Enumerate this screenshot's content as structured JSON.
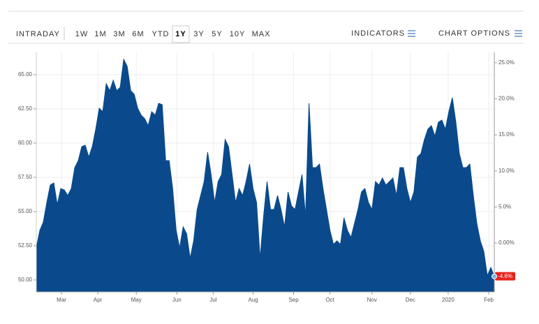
{
  "toolbar": {
    "intraday": "INTRADAY",
    "ranges": [
      "1W",
      "1M",
      "3M",
      "6M",
      "YTD",
      "1Y",
      "3Y",
      "5Y",
      "10Y",
      "MAX"
    ],
    "active_range": 5,
    "indicators": "INDICATORS",
    "chart_options": "CHART OPTIONS"
  },
  "chart_data": {
    "type": "area",
    "color": "#0a4a8c",
    "grid": true,
    "x": [
      0,
      1,
      2,
      3,
      4,
      5,
      6,
      7,
      8,
      9,
      10,
      11,
      12,
      13,
      14,
      15,
      16,
      17,
      18,
      19,
      20,
      21,
      22,
      23,
      24,
      25,
      26,
      27,
      28,
      29,
      30,
      31,
      32,
      33,
      34,
      35,
      36,
      37,
      38,
      39,
      40,
      41,
      42,
      43,
      44,
      45,
      46,
      47,
      48,
      49,
      50,
      51,
      52,
      53,
      54,
      55,
      56,
      57,
      58,
      59,
      60,
      61,
      62,
      63,
      64,
      65,
      66,
      67,
      68,
      69,
      70,
      71,
      72,
      73,
      74,
      75,
      76,
      77,
      78,
      79,
      80,
      81,
      82,
      83,
      84,
      85,
      86,
      87,
      88,
      89,
      90,
      91,
      92,
      93,
      94,
      95,
      96,
      97,
      98,
      99,
      100,
      101,
      102,
      103,
      104,
      105,
      106,
      107,
      108,
      109,
      110,
      111,
      112,
      113,
      114,
      115,
      116,
      117,
      118,
      119,
      120,
      121,
      122,
      123,
      124,
      125,
      126,
      127,
      128,
      129,
      130,
      131
    ],
    "values": [
      52.35,
      53.62,
      54.23,
      55.66,
      56.94,
      57.09,
      55.51,
      56.68,
      56.58,
      56.17,
      56.68,
      58.21,
      58.72,
      59.74,
      59.85,
      58.98,
      59.74,
      61.02,
      62.55,
      62.3,
      64.34,
      63.83,
      64.59,
      63.83,
      64.08,
      66.12,
      65.61,
      63.83,
      63.57,
      62.55,
      62.04,
      61.79,
      61.28,
      62.3,
      62.04,
      62.91,
      62.81,
      58.72,
      58.72,
      56.68,
      53.62,
      52.35,
      53.88,
      53.37,
      51.58,
      52.86,
      55.15,
      56.17,
      57.19,
      59.34,
      57.7,
      55.66,
      57.19,
      57.7,
      60.26,
      59.74,
      57.7,
      55.66,
      56.68,
      56.17,
      57.19,
      58.47,
      56.68,
      55.66,
      51.58,
      54.64,
      57.19,
      55.15,
      55.15,
      56.17,
      55.15,
      53.88,
      56.43,
      55.41,
      55.15,
      56.43,
      57.7,
      54.64,
      62.91,
      58.21,
      58.21,
      58.47,
      56.68,
      55.15,
      53.62,
      52.6,
      52.86,
      52.6,
      54.54,
      53.62,
      53.11,
      54.13,
      55.15,
      56.43,
      56.68,
      55.66,
      55.15,
      57.19,
      56.94,
      57.45,
      56.94,
      57.19,
      57.45,
      56.17,
      58.21,
      58.21,
      56.68,
      55.66,
      56.43,
      58.98,
      59.23,
      60.26,
      61.02,
      61.28,
      60.51,
      61.53,
      61.68,
      61.02,
      62.3,
      63.32,
      61.53,
      59.23,
      58.21,
      58.21,
      58.47,
      56.17,
      54.13,
      52.86,
      52.09,
      50.31,
      50.92,
      50.26
    ],
    "xlim": [
      0,
      131
    ],
    "xticks": [
      {
        "value": 7.2,
        "label": "Mar"
      },
      {
        "value": 17.6,
        "label": "Apr"
      },
      {
        "value": 28.6,
        "label": "May"
      },
      {
        "value": 40.2,
        "label": "Jun"
      },
      {
        "value": 50.6,
        "label": "Jul"
      },
      {
        "value": 62,
        "label": "Aug"
      },
      {
        "value": 73.6,
        "label": "Sep"
      },
      {
        "value": 84,
        "label": "Oct"
      },
      {
        "value": 96,
        "label": "Nov"
      },
      {
        "value": 107,
        "label": "Dec"
      },
      {
        "value": 117.8,
        "label": "2020"
      },
      {
        "value": 129.4,
        "label": "Feb"
      }
    ],
    "ylim": [
      49.13,
      66.63
    ],
    "yticks": [
      {
        "value": 50,
        "label": "50.00"
      },
      {
        "value": 52.5,
        "label": "52.50"
      },
      {
        "value": 55,
        "label": "55.00"
      },
      {
        "value": 57.5,
        "label": "57.50"
      },
      {
        "value": 60,
        "label": "60.00"
      },
      {
        "value": 62.5,
        "label": "62.50"
      },
      {
        "value": 65,
        "label": "65.00"
      }
    ],
    "y2lim": [
      -6.77,
      26.43
    ],
    "y2ticks": [
      {
        "value": 0,
        "label": "0.00%"
      },
      {
        "value": 5,
        "label": "5.0%"
      },
      {
        "value": 10,
        "label": "10.0%"
      },
      {
        "value": 15,
        "label": "15.0%"
      },
      {
        "value": 20,
        "label": "20.0%"
      },
      {
        "value": 25,
        "label": "25.0%"
      }
    ],
    "change": -4.6,
    "change_label": "-4.6%"
  }
}
